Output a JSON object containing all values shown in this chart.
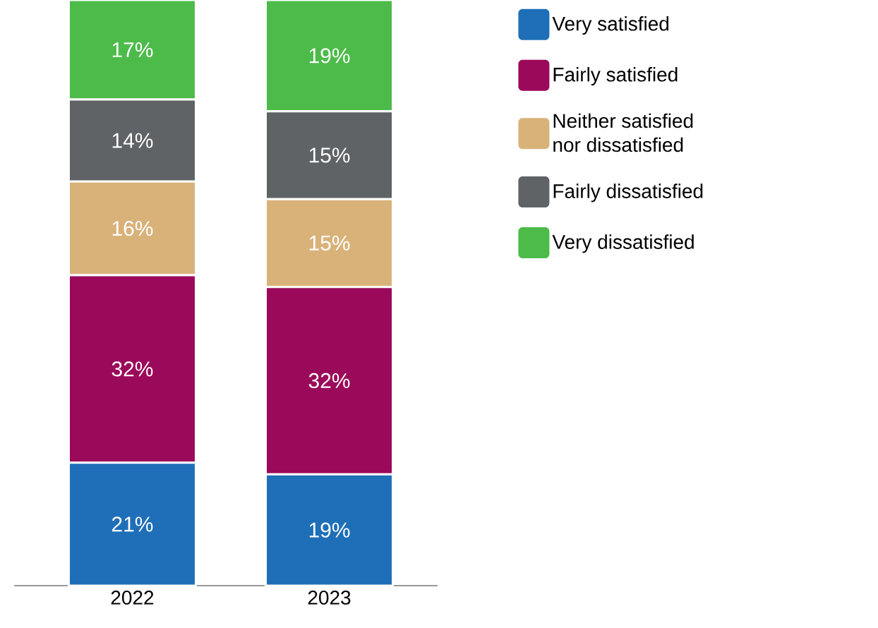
{
  "chart_data": {
    "type": "bar",
    "stacked": true,
    "categories": [
      "2022",
      "2023"
    ],
    "legend": "right",
    "series": [
      {
        "name": "Very satisfied",
        "color": "#1f6fb8",
        "values": [
          21,
          19
        ],
        "value_labels": [
          "21%",
          "19%"
        ]
      },
      {
        "name": "Fairly satisfied",
        "color": "#9b0a5a",
        "values": [
          32,
          32
        ],
        "value_labels": [
          "32%",
          "32%"
        ]
      },
      {
        "name": "Neither satisfied\nnor dissatisfied",
        "color": "#d9b27a",
        "values": [
          16,
          15
        ],
        "value_labels": [
          "16%",
          "15%"
        ]
      },
      {
        "name": "Fairly dissatisfied",
        "color": "#5f6366",
        "values": [
          14,
          15
        ],
        "value_labels": [
          "14%",
          "15%"
        ]
      },
      {
        "name": "Very dissatisfied",
        "color": "#4dbb4a",
        "values": [
          17,
          19
        ],
        "value_labels": [
          "17%",
          "19%"
        ]
      }
    ]
  }
}
